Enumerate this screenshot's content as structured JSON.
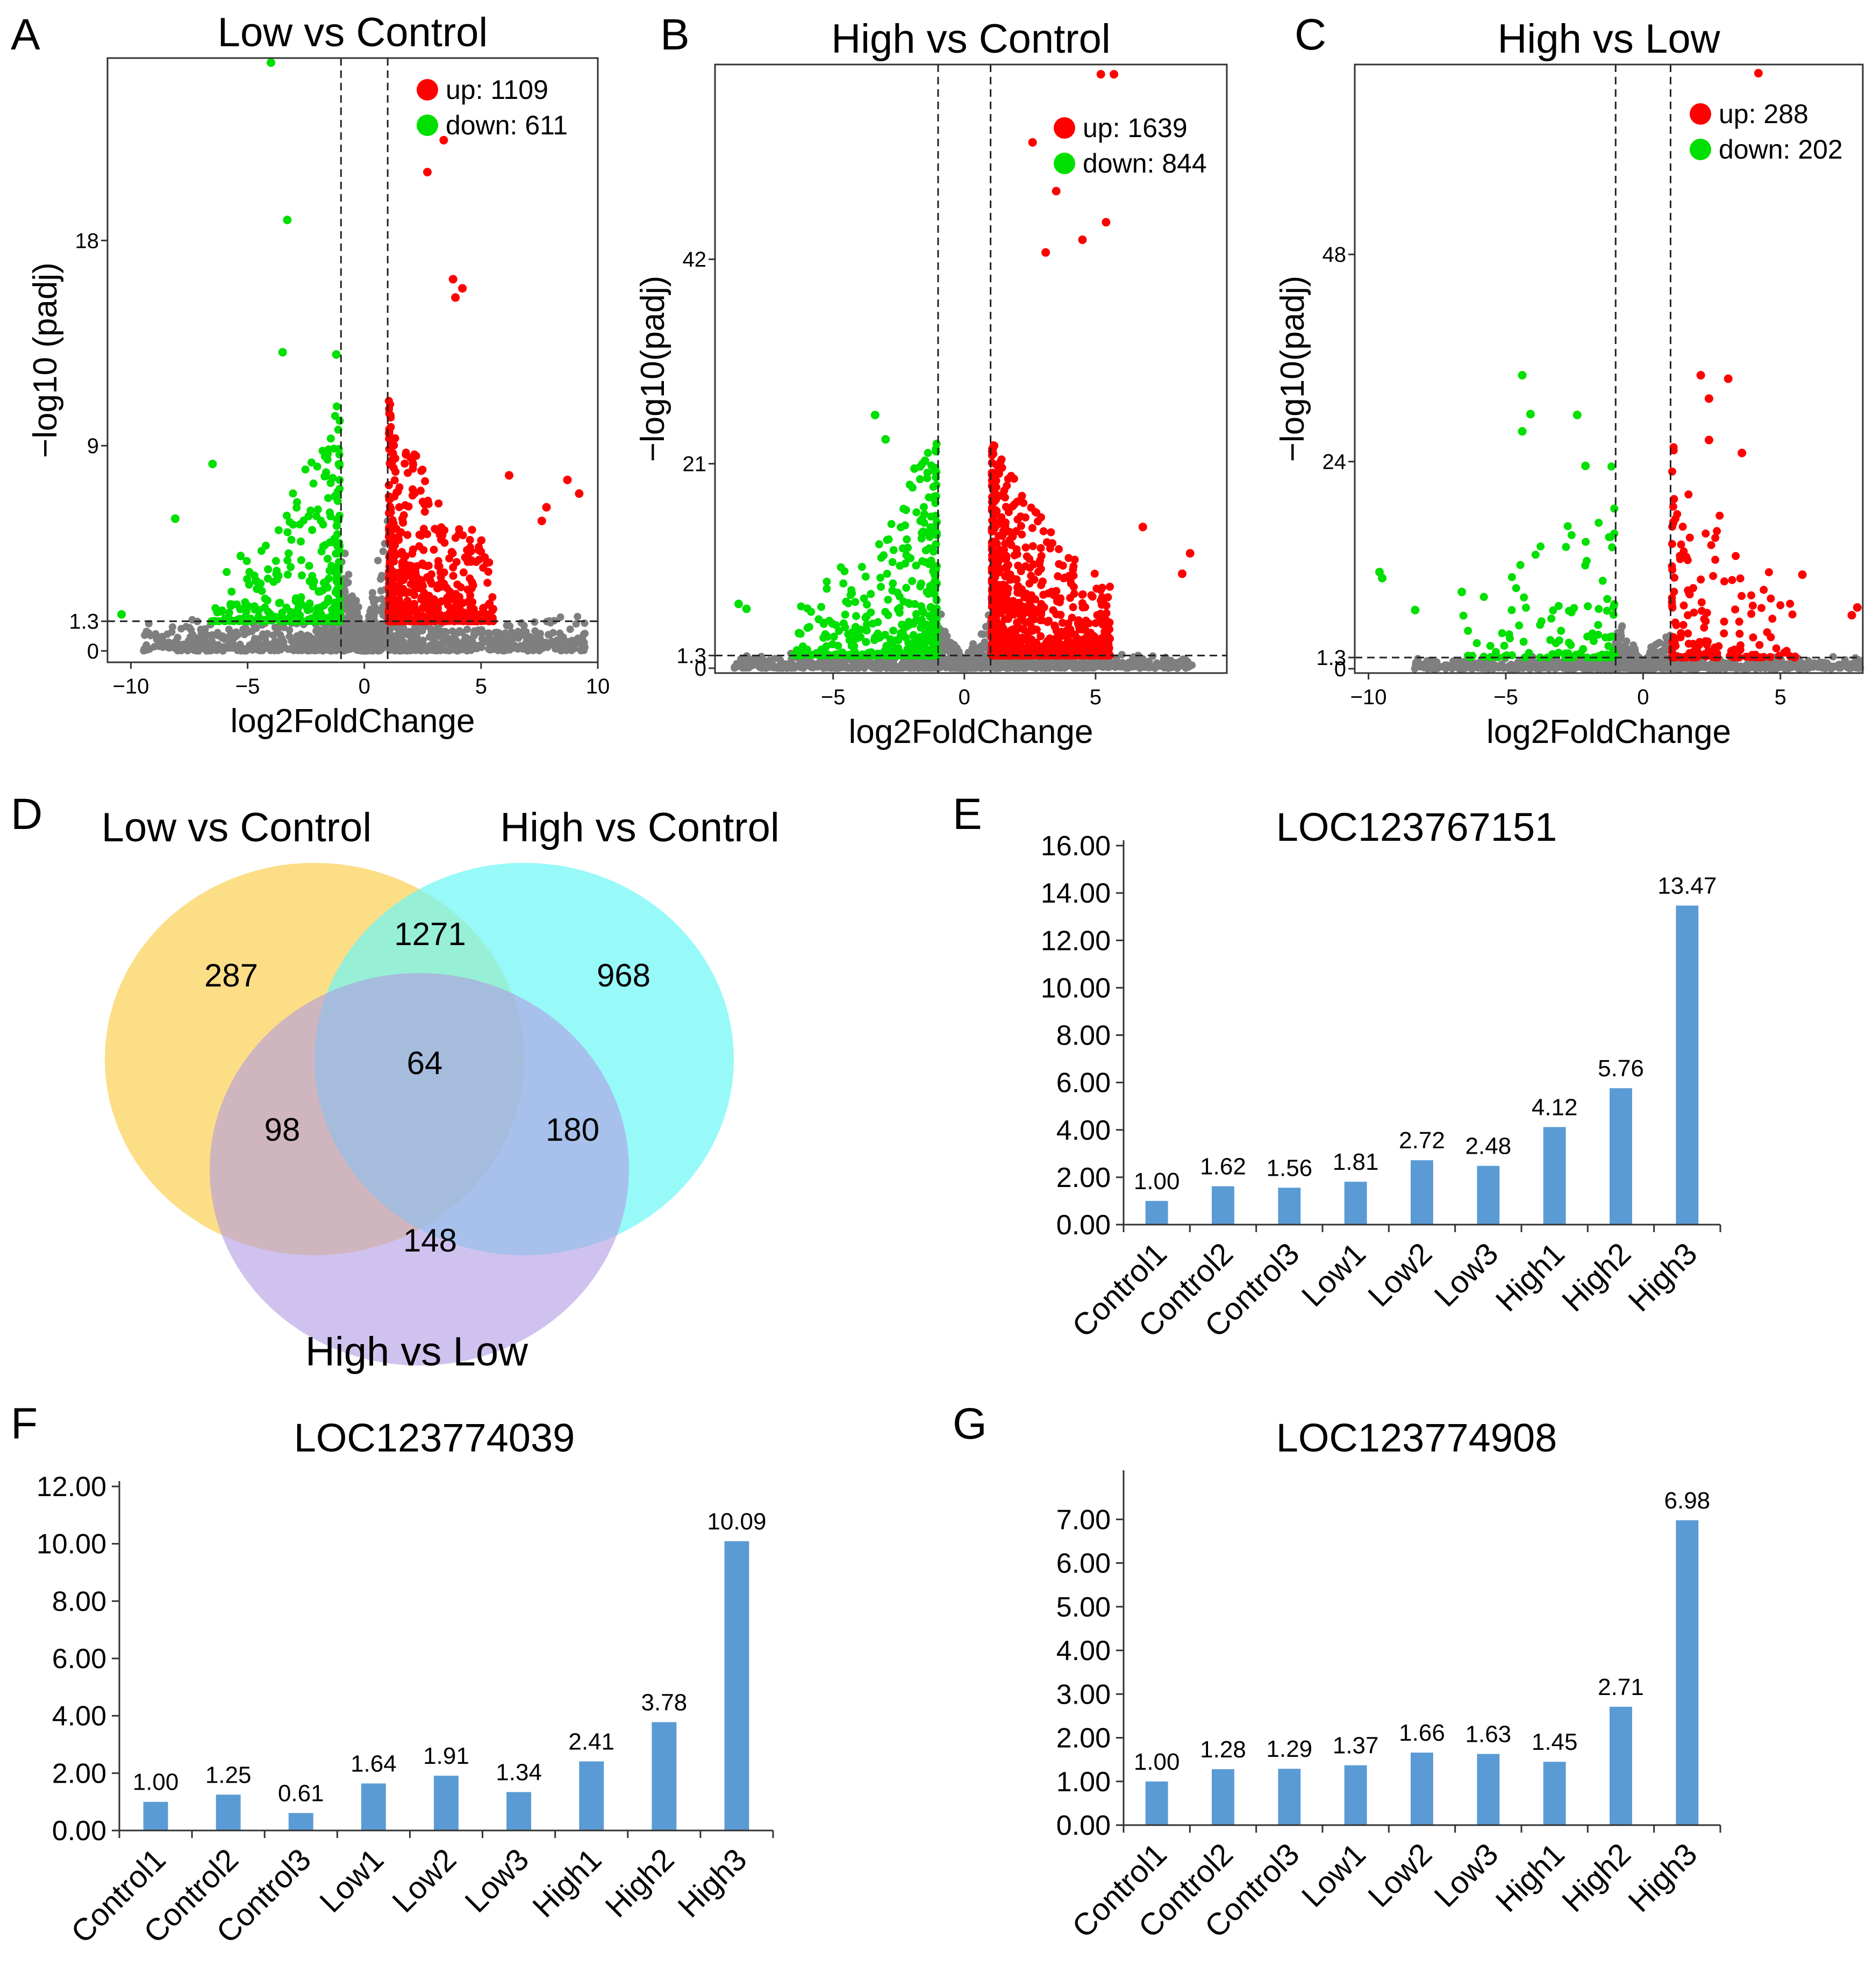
{
  "panel_labels": [
    "A",
    "B",
    "C",
    "D",
    "E",
    "F",
    "G"
  ],
  "colors": {
    "up": "#ff0000",
    "down": "#00e000",
    "ns": "#7f7f7f",
    "bar": "#5b9bd5",
    "venn_a": "#fbd872",
    "venn_b": "#6cf7f7",
    "venn_c": "#b199e3"
  },
  "chart_data": [
    {
      "type": "scatter",
      "panel": "A",
      "title": "Low vs Control",
      "xlabel": "log2FoldChange",
      "ylabel": "−log10 (padj)",
      "xlim": [
        -11,
        10
      ],
      "ylim": [
        -0.5,
        26
      ],
      "xticks": [
        -10,
        -5,
        0,
        5,
        10
      ],
      "xtick_labels": [
        "−10",
        "−5",
        "0",
        "5",
        "10"
      ],
      "yticks": [
        0,
        1.3,
        9,
        18
      ],
      "ytick_labels": [
        "0",
        "1.3",
        "9",
        "18"
      ],
      "fc_cutoff": 1,
      "padj_cutoff": 1.3,
      "legend": {
        "up": "up: 1109",
        "down": "down: 611"
      },
      "counts": {
        "up": 1109,
        "down": 611
      },
      "highlight_points": [
        [
          -4,
          25.8
        ],
        [
          -3.3,
          18.9
        ],
        [
          -3.5,
          13.1
        ],
        [
          -1.2,
          13.0
        ],
        [
          -8.1,
          5.8
        ],
        [
          -6.5,
          8.2
        ],
        [
          -10.4,
          1.6
        ],
        [
          3.4,
          22.4
        ],
        [
          2.7,
          21.0
        ],
        [
          3.8,
          16.3
        ],
        [
          4.2,
          15.9
        ],
        [
          3.9,
          15.5
        ],
        [
          8.7,
          7.5
        ],
        [
          9.2,
          6.9
        ],
        [
          6.2,
          7.7
        ],
        [
          7.6,
          5.7
        ],
        [
          7.8,
          6.3
        ]
      ],
      "seed": 11
    },
    {
      "type": "scatter",
      "panel": "B",
      "title": "High vs Control",
      "xlabel": "log2FoldChange",
      "ylabel": "−log10(padj)",
      "xlim": [
        -9.5,
        10
      ],
      "ylim": [
        -0.5,
        62
      ],
      "xticks": [
        -5,
        0,
        5
      ],
      "xtick_labels": [
        "−5",
        "0",
        "5"
      ],
      "yticks": [
        0,
        1.3,
        21,
        42
      ],
      "ytick_labels": [
        "0",
        "1.3",
        "21",
        "42"
      ],
      "fc_cutoff": 1,
      "padj_cutoff": 1.3,
      "legend": {
        "up": "up: 1639",
        "down": "down: 844"
      },
      "counts": {
        "up": 1639,
        "down": 844
      },
      "highlight_points": [
        [
          5.2,
          61.0
        ],
        [
          5.7,
          61.0
        ],
        [
          2.6,
          54.0
        ],
        [
          3.5,
          49.0
        ],
        [
          5.4,
          45.8
        ],
        [
          4.5,
          44.0
        ],
        [
          3.1,
          42.7
        ],
        [
          6.8,
          14.5
        ],
        [
          8.6,
          11.8
        ],
        [
          8.3,
          9.7
        ],
        [
          -3.4,
          26.0
        ],
        [
          -3.0,
          23.5
        ],
        [
          -1.9,
          20.5
        ],
        [
          -1.5,
          21.3
        ],
        [
          -8.6,
          6.6
        ],
        [
          -8.3,
          6.1
        ],
        [
          -6.3,
          3.6
        ]
      ],
      "seed": 22
    },
    {
      "type": "scatter",
      "panel": "C",
      "title": "High vs Low",
      "xlabel": "log2FoldChange",
      "ylabel": "−log10(padj)",
      "xlim": [
        -10.5,
        8
      ],
      "ylim": [
        -0.5,
        70
      ],
      "xticks": [
        -10,
        -5,
        0,
        5
      ],
      "xtick_labels": [
        "−10",
        "−5",
        "0",
        "5"
      ],
      "yticks": [
        0,
        1.3,
        24,
        48
      ],
      "ytick_labels": [
        "0",
        "1.3",
        "24",
        "48"
      ],
      "fc_cutoff": 1,
      "padj_cutoff": 1.3,
      "legend": {
        "up": "up: 288",
        "down": "down: 202"
      },
      "counts": {
        "up": 288,
        "down": 202
      },
      "highlight_points": [
        [
          4.2,
          69.0
        ],
        [
          2.1,
          34.0
        ],
        [
          3.1,
          33.6
        ],
        [
          2.4,
          31.3
        ],
        [
          2.4,
          26.5
        ],
        [
          3.6,
          25.0
        ],
        [
          -4.4,
          34.0
        ],
        [
          -4.1,
          29.5
        ],
        [
          -4.4,
          27.5
        ],
        [
          -2.4,
          29.4
        ],
        [
          -2.1,
          23.5
        ],
        [
          -9.6,
          11.2
        ],
        [
          -9.5,
          10.5
        ],
        [
          -8.3,
          6.8
        ],
        [
          -6.6,
          8.9
        ],
        [
          7.6,
          6.2
        ],
        [
          7.8,
          7.1
        ],
        [
          5.8,
          10.9
        ]
      ],
      "seed": 33
    },
    {
      "type": "venn",
      "panel": "D",
      "sets": [
        "Low vs Control",
        "High vs Control",
        "High vs Low"
      ],
      "regions": {
        "a_only": 287,
        "b_only": 968,
        "c_only": 148,
        "ab_only": 1271,
        "ac_only": 98,
        "bc_only": 180,
        "abc": 64
      },
      "region_labels": {
        "a_only": "287",
        "b_only": "968",
        "c_only": "148",
        "ab_only": "1271",
        "ac_only": "98",
        "bc_only": "180",
        "abc": "64"
      }
    },
    {
      "type": "bar",
      "panel": "E",
      "title": "LOC123767151",
      "categories": [
        "Control1",
        "Control2",
        "Control3",
        "Low1",
        "Low2",
        "Low3",
        "High1",
        "High2",
        "High3"
      ],
      "values": [
        1.0,
        1.62,
        1.56,
        1.81,
        2.72,
        2.48,
        4.12,
        5.76,
        13.47
      ],
      "value_labels": [
        "1.00",
        "1.62",
        "1.56",
        "1.81",
        "2.72",
        "2.48",
        "4.12",
        "5.76",
        "13.47"
      ],
      "ylim": [
        0,
        16
      ],
      "yticks": [
        0,
        2,
        4,
        6,
        8,
        10,
        12,
        14,
        16
      ],
      "ytick_labels": [
        "0.00",
        "2.00",
        "4.00",
        "6.00",
        "8.00",
        "10.00",
        "12.00",
        "14.00",
        "16.00"
      ]
    },
    {
      "type": "bar",
      "panel": "F",
      "title": "LOC123774039",
      "categories": [
        "Control1",
        "Control2",
        "Control3",
        "Low1",
        "Low2",
        "Low3",
        "High1",
        "High2",
        "High3"
      ],
      "values": [
        1.0,
        1.25,
        0.61,
        1.64,
        1.91,
        1.34,
        2.41,
        3.78,
        10.09
      ],
      "value_labels": [
        "1.00",
        "1.25",
        "0.61",
        "1.64",
        "1.91",
        "1.34",
        "2.41",
        "3.78",
        "10.09"
      ],
      "ylim": [
        0,
        12
      ],
      "yticks": [
        0,
        2,
        4,
        6,
        8,
        10,
        12
      ],
      "ytick_labels": [
        "0.00",
        "2.00",
        "4.00",
        "6.00",
        "8.00",
        "10.00",
        "12.00"
      ]
    },
    {
      "type": "bar",
      "panel": "G",
      "title": "LOC123774908",
      "categories": [
        "Control1",
        "Control2",
        "Control3",
        "Low1",
        "Low2",
        "Low3",
        "High1",
        "High2",
        "High3"
      ],
      "values": [
        1.0,
        1.28,
        1.29,
        1.37,
        1.66,
        1.63,
        1.45,
        2.71,
        6.98
      ],
      "value_labels": [
        "1.00",
        "1.28",
        "1.29",
        "1.37",
        "1.66",
        "1.63",
        "1.45",
        "2.71",
        "6.98"
      ],
      "ylim": [
        0,
        8
      ],
      "yticks": [
        0,
        1,
        2,
        3,
        4,
        5,
        6,
        7
      ],
      "ytick_labels": [
        "0.00",
        "1.00",
        "2.00",
        "3.00",
        "4.00",
        "5.00",
        "6.00",
        "7.00"
      ]
    }
  ]
}
